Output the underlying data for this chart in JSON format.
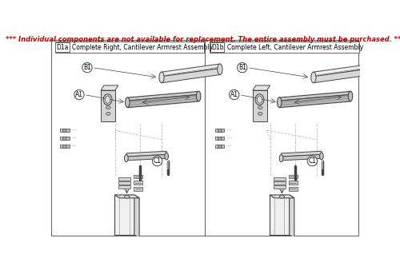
{
  "title": "*** Individual components are not available for replacement. The entire assembly must be purchased. ***",
  "title_color": "#cc0000",
  "title_fs": 6.0,
  "bg": "#ffffff",
  "lc": "#444444",
  "lc2": "#888888",
  "dc": "#aaaaaa",
  "panels": [
    {
      "label": "D1a",
      "title": "Complete Right, Cantilever Armrest Assembly",
      "ox": 0.01
    },
    {
      "label": "D1b",
      "title": "Complete Left, Cantilever Armrest Assembly",
      "ox": 0.51
    }
  ]
}
